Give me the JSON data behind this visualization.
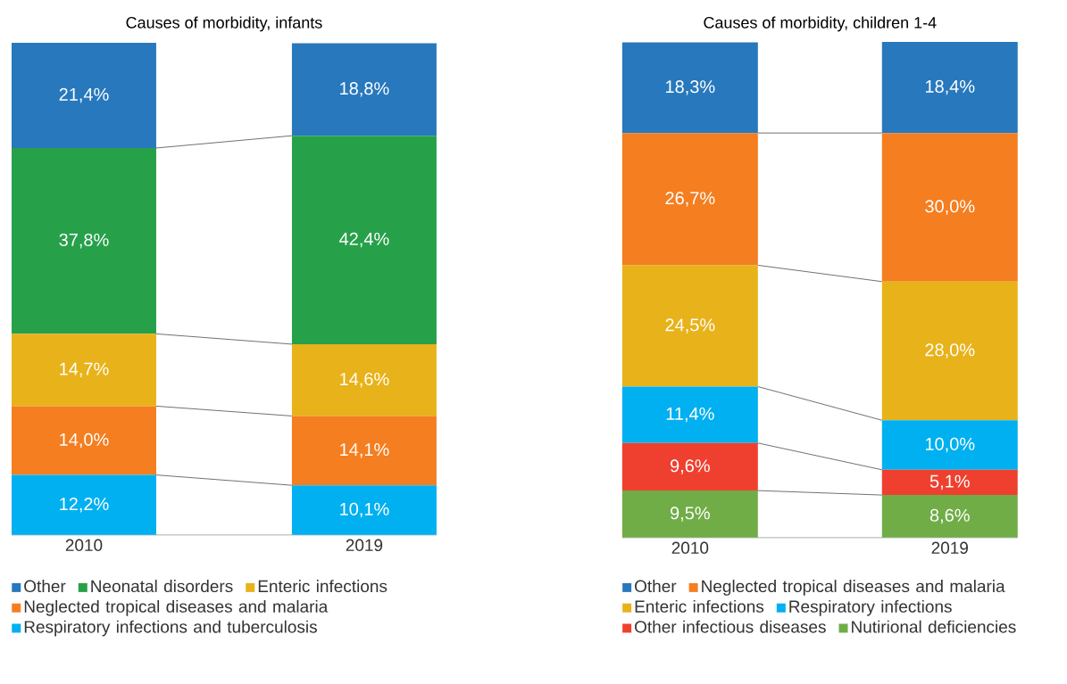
{
  "chart_data": [
    {
      "type": "bar",
      "title": "Causes of morbidity, infants",
      "categories": [
        "2010",
        "2019"
      ],
      "stacked": true,
      "tick_labels": "x",
      "legend": "bottom",
      "series": [
        {
          "name": "Respiratory infections and tuberculosis",
          "color": "#00b0f0",
          "values": [
            12.2,
            10.1
          ],
          "value_labels": [
            "12,2%",
            "10,1%"
          ]
        },
        {
          "name": "Neglected tropical diseases and malaria",
          "color": "#f47e20",
          "values": [
            14.0,
            14.1
          ],
          "value_labels": [
            "14,0%",
            "14,1%"
          ]
        },
        {
          "name": "Enteric infections",
          "color": "#e8b21a",
          "values": [
            14.7,
            14.6
          ],
          "value_labels": [
            "14,7%",
            "14,6%"
          ]
        },
        {
          "name": "Neonatal disorders",
          "color": "#27a04a",
          "values": [
            37.8,
            42.4
          ],
          "value_labels": [
            "37,8%",
            "42,4%"
          ]
        },
        {
          "name": "Other",
          "color": "#2878bd",
          "values": [
            21.4,
            18.8
          ],
          "value_labels": [
            "21,4%",
            "18,8%"
          ]
        }
      ]
    },
    {
      "type": "bar",
      "title": "Causes of morbidity, children 1-4",
      "categories": [
        "2010",
        "2019"
      ],
      "stacked": true,
      "tick_labels": "x",
      "legend": "bottom",
      "series": [
        {
          "name": "Nutirional deficiencies",
          "color": "#70ad47",
          "values": [
            9.5,
            8.6
          ],
          "value_labels": [
            "9,5%",
            "8,6%"
          ]
        },
        {
          "name": "Other infectious diseases",
          "color": "#ef402f",
          "values": [
            9.6,
            5.1
          ],
          "value_labels": [
            "9,6%",
            "5,1%"
          ]
        },
        {
          "name": "Respiratory infections",
          "color": "#00b0f0",
          "values": [
            11.4,
            10.0
          ],
          "value_labels": [
            "11,4%",
            "10,0%"
          ]
        },
        {
          "name": "Enteric infections",
          "color": "#e8b21a",
          "values": [
            24.5,
            28.0
          ],
          "value_labels": [
            "24,5%",
            "28,0%"
          ]
        },
        {
          "name": "Neglected tropical diseases and malaria",
          "color": "#f47e20",
          "values": [
            26.7,
            30.0
          ],
          "value_labels": [
            "26,7%",
            "30,0%"
          ]
        },
        {
          "name": "Other",
          "color": "#2878bd",
          "values": [
            18.3,
            18.4
          ],
          "value_labels": [
            "18,3%",
            "18,4%"
          ]
        }
      ]
    }
  ]
}
